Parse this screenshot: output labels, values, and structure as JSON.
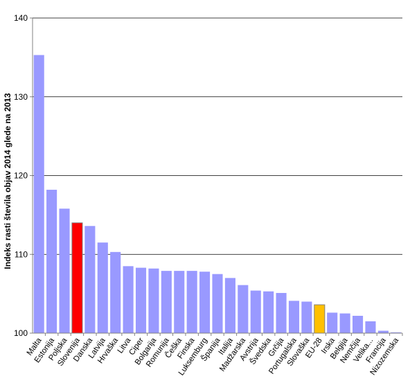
{
  "chart_data": {
    "type": "bar",
    "title": "",
    "xlabel": "",
    "ylabel": "Indeks rasti števila objav 2014 glede na 2013",
    "ylim": [
      100,
      140
    ],
    "yticks": [
      100,
      110,
      120,
      130,
      140
    ],
    "grid": true,
    "categories": [
      "Malta",
      "Estonija",
      "Poljska",
      "Slovenija",
      "Danska",
      "Latvija",
      "Hrvaška",
      "Litva",
      "Ciper",
      "Bolgarija",
      "Romunija",
      "Češka",
      "Finska",
      "Luksemburg",
      "Španija",
      "Italija",
      "Madžarska",
      "Avstrija",
      "Švedska",
      "Grčija",
      "Portugalska",
      "Slovaška",
      "EU-28",
      "Irska",
      "Belgija",
      "Nemčija",
      "Velika...",
      "Francija",
      "Nizozemska"
    ],
    "values": [
      135.3,
      118.2,
      115.8,
      114.0,
      113.6,
      111.5,
      110.3,
      108.5,
      108.3,
      108.2,
      107.9,
      107.9,
      107.9,
      107.8,
      107.5,
      107.0,
      106.1,
      105.4,
      105.3,
      105.1,
      104.1,
      104.0,
      103.6,
      102.6,
      102.5,
      102.2,
      101.5,
      100.3,
      100.1
    ],
    "highlight": {
      "Slovenija": "#ff0000",
      "EU-28": "#ffc000"
    },
    "colors": {
      "bar": "#9999ff",
      "grid": "#000000",
      "axis": "#808080"
    }
  }
}
